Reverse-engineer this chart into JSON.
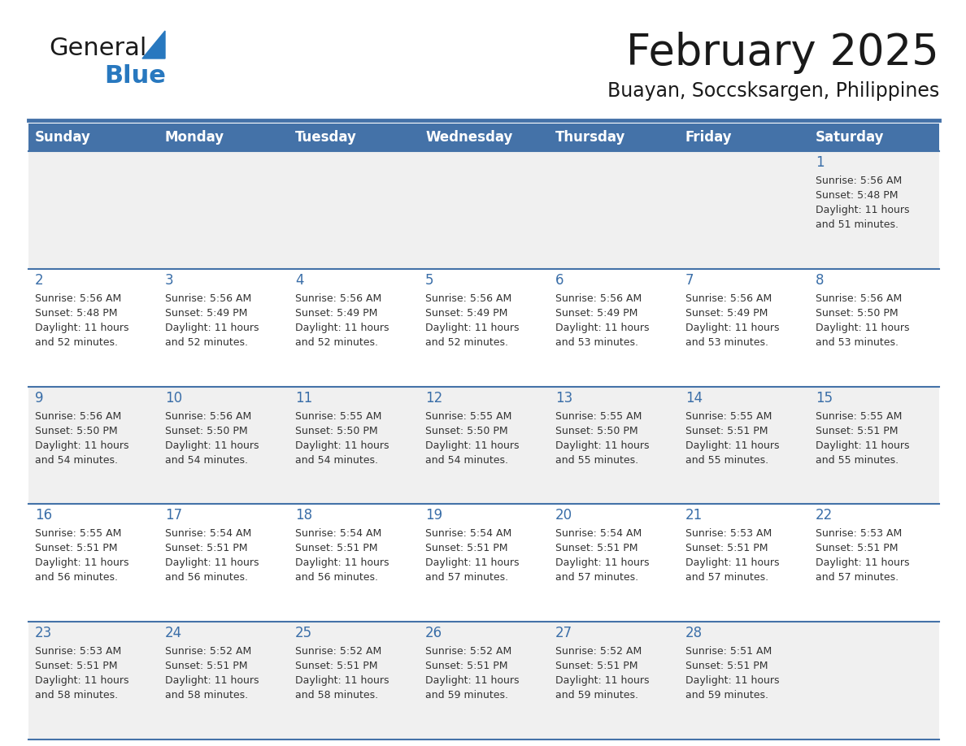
{
  "title": "February 2025",
  "subtitle": "Buayan, Soccsksargen, Philippines",
  "days_of_week": [
    "Sunday",
    "Monday",
    "Tuesday",
    "Wednesday",
    "Thursday",
    "Friday",
    "Saturday"
  ],
  "header_bg_color": "#4472a8",
  "header_text_color": "#ffffff",
  "row_bg_even": "#f0f0f0",
  "row_bg_odd": "#ffffff",
  "day_number_color": "#3a6ea8",
  "text_color": "#333333",
  "border_color": "#4472a8",
  "calendar_data": [
    {
      "day": 1,
      "col": 6,
      "row": 0,
      "sunrise": "5:56 AM",
      "sunset": "5:48 PM",
      "daylight": "11 hours and 51 minutes."
    },
    {
      "day": 2,
      "col": 0,
      "row": 1,
      "sunrise": "5:56 AM",
      "sunset": "5:48 PM",
      "daylight": "11 hours and 52 minutes."
    },
    {
      "day": 3,
      "col": 1,
      "row": 1,
      "sunrise": "5:56 AM",
      "sunset": "5:49 PM",
      "daylight": "11 hours and 52 minutes."
    },
    {
      "day": 4,
      "col": 2,
      "row": 1,
      "sunrise": "5:56 AM",
      "sunset": "5:49 PM",
      "daylight": "11 hours and 52 minutes."
    },
    {
      "day": 5,
      "col": 3,
      "row": 1,
      "sunrise": "5:56 AM",
      "sunset": "5:49 PM",
      "daylight": "11 hours and 52 minutes."
    },
    {
      "day": 6,
      "col": 4,
      "row": 1,
      "sunrise": "5:56 AM",
      "sunset": "5:49 PM",
      "daylight": "11 hours and 53 minutes."
    },
    {
      "day": 7,
      "col": 5,
      "row": 1,
      "sunrise": "5:56 AM",
      "sunset": "5:49 PM",
      "daylight": "11 hours and 53 minutes."
    },
    {
      "day": 8,
      "col": 6,
      "row": 1,
      "sunrise": "5:56 AM",
      "sunset": "5:50 PM",
      "daylight": "11 hours and 53 minutes."
    },
    {
      "day": 9,
      "col": 0,
      "row": 2,
      "sunrise": "5:56 AM",
      "sunset": "5:50 PM",
      "daylight": "11 hours and 54 minutes."
    },
    {
      "day": 10,
      "col": 1,
      "row": 2,
      "sunrise": "5:56 AM",
      "sunset": "5:50 PM",
      "daylight": "11 hours and 54 minutes."
    },
    {
      "day": 11,
      "col": 2,
      "row": 2,
      "sunrise": "5:55 AM",
      "sunset": "5:50 PM",
      "daylight": "11 hours and 54 minutes."
    },
    {
      "day": 12,
      "col": 3,
      "row": 2,
      "sunrise": "5:55 AM",
      "sunset": "5:50 PM",
      "daylight": "11 hours and 54 minutes."
    },
    {
      "day": 13,
      "col": 4,
      "row": 2,
      "sunrise": "5:55 AM",
      "sunset": "5:50 PM",
      "daylight": "11 hours and 55 minutes."
    },
    {
      "day": 14,
      "col": 5,
      "row": 2,
      "sunrise": "5:55 AM",
      "sunset": "5:51 PM",
      "daylight": "11 hours and 55 minutes."
    },
    {
      "day": 15,
      "col": 6,
      "row": 2,
      "sunrise": "5:55 AM",
      "sunset": "5:51 PM",
      "daylight": "11 hours and 55 minutes."
    },
    {
      "day": 16,
      "col": 0,
      "row": 3,
      "sunrise": "5:55 AM",
      "sunset": "5:51 PM",
      "daylight": "11 hours and 56 minutes."
    },
    {
      "day": 17,
      "col": 1,
      "row": 3,
      "sunrise": "5:54 AM",
      "sunset": "5:51 PM",
      "daylight": "11 hours and 56 minutes."
    },
    {
      "day": 18,
      "col": 2,
      "row": 3,
      "sunrise": "5:54 AM",
      "sunset": "5:51 PM",
      "daylight": "11 hours and 56 minutes."
    },
    {
      "day": 19,
      "col": 3,
      "row": 3,
      "sunrise": "5:54 AM",
      "sunset": "5:51 PM",
      "daylight": "11 hours and 57 minutes."
    },
    {
      "day": 20,
      "col": 4,
      "row": 3,
      "sunrise": "5:54 AM",
      "sunset": "5:51 PM",
      "daylight": "11 hours and 57 minutes."
    },
    {
      "day": 21,
      "col": 5,
      "row": 3,
      "sunrise": "5:53 AM",
      "sunset": "5:51 PM",
      "daylight": "11 hours and 57 minutes."
    },
    {
      "day": 22,
      "col": 6,
      "row": 3,
      "sunrise": "5:53 AM",
      "sunset": "5:51 PM",
      "daylight": "11 hours and 57 minutes."
    },
    {
      "day": 23,
      "col": 0,
      "row": 4,
      "sunrise": "5:53 AM",
      "sunset": "5:51 PM",
      "daylight": "11 hours and 58 minutes."
    },
    {
      "day": 24,
      "col": 1,
      "row": 4,
      "sunrise": "5:52 AM",
      "sunset": "5:51 PM",
      "daylight": "11 hours and 58 minutes."
    },
    {
      "day": 25,
      "col": 2,
      "row": 4,
      "sunrise": "5:52 AM",
      "sunset": "5:51 PM",
      "daylight": "11 hours and 58 minutes."
    },
    {
      "day": 26,
      "col": 3,
      "row": 4,
      "sunrise": "5:52 AM",
      "sunset": "5:51 PM",
      "daylight": "11 hours and 59 minutes."
    },
    {
      "day": 27,
      "col": 4,
      "row": 4,
      "sunrise": "5:52 AM",
      "sunset": "5:51 PM",
      "daylight": "11 hours and 59 minutes."
    },
    {
      "day": 28,
      "col": 5,
      "row": 4,
      "sunrise": "5:51 AM",
      "sunset": "5:51 PM",
      "daylight": "11 hours and 59 minutes."
    }
  ],
  "num_rows": 5,
  "num_cols": 7,
  "logo_general_color": "#1a1a1a",
  "logo_blue_color": "#2878bf",
  "logo_triangle_color": "#2878bf",
  "title_fontsize": 38,
  "subtitle_fontsize": 17,
  "dow_fontsize": 12,
  "day_num_fontsize": 12,
  "cell_text_fontsize": 9
}
